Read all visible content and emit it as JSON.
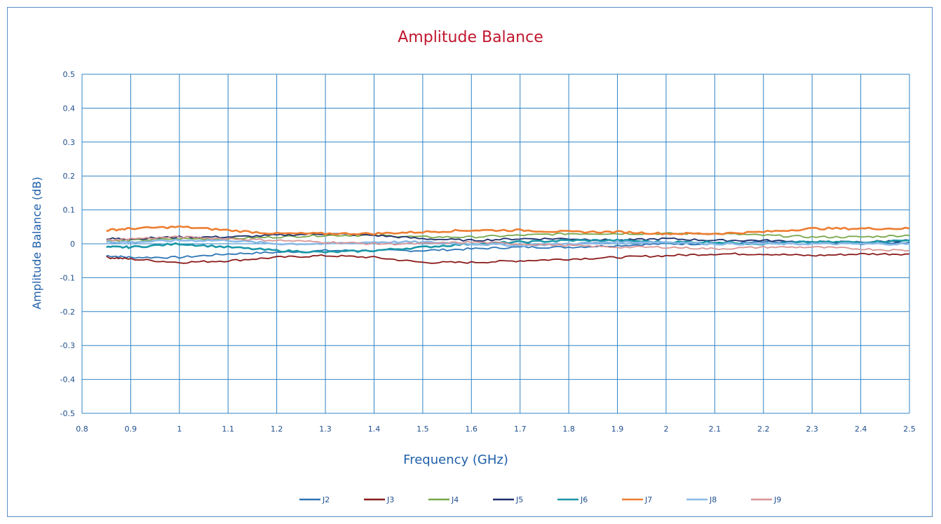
{
  "chart_data": {
    "type": "line",
    "title": "Amplitude Balance",
    "xlabel": "Frequency (GHz)",
    "ylabel": "Amplitude Balance (dB)",
    "xlim": [
      0.8,
      2.5
    ],
    "ylim": [
      -0.5,
      0.5
    ],
    "x_ticks": [
      "0.8",
      "0.9",
      "1",
      "1.1",
      "1.2",
      "1.3",
      "1.4",
      "1.5",
      "1.6",
      "1.7",
      "1.8",
      "1.9",
      "2",
      "2.1",
      "2.2",
      "2.3",
      "2.4",
      "2.5"
    ],
    "y_ticks": [
      "0.5",
      "0.4",
      "0.3",
      "0.2",
      "0.1",
      "0",
      "-0.1",
      "-0.2",
      "-0.3",
      "-0.4",
      "-0.5"
    ],
    "grid": true,
    "legend_position": "bottom",
    "x": [
      0.85,
      0.9,
      1.0,
      1.1,
      1.2,
      1.3,
      1.4,
      1.5,
      1.6,
      1.7,
      1.8,
      1.9,
      2.0,
      2.1,
      2.2,
      2.3,
      2.4,
      2.5
    ],
    "series": [
      {
        "name": "J2",
        "color": "#2e75b6",
        "values": [
          -0.035,
          -0.04,
          -0.04,
          -0.03,
          -0.025,
          -0.02,
          -0.02,
          -0.02,
          -0.015,
          -0.01,
          -0.01,
          -0.005,
          0.0,
          0.0,
          0.005,
          0.005,
          0.0,
          0.005
        ]
      },
      {
        "name": "J3",
        "color": "#8b1a1a",
        "values": [
          -0.04,
          -0.045,
          -0.055,
          -0.05,
          -0.04,
          -0.035,
          -0.04,
          -0.055,
          -0.055,
          -0.05,
          -0.045,
          -0.04,
          -0.035,
          -0.03,
          -0.03,
          -0.035,
          -0.03,
          -0.03
        ]
      },
      {
        "name": "J4",
        "color": "#77a84a",
        "values": [
          0.01,
          0.01,
          0.015,
          0.015,
          0.02,
          0.025,
          0.025,
          0.02,
          0.02,
          0.025,
          0.03,
          0.03,
          0.03,
          0.03,
          0.025,
          0.02,
          0.02,
          0.025
        ]
      },
      {
        "name": "J5",
        "color": "#1f2f6b",
        "values": [
          0.015,
          0.015,
          0.02,
          0.02,
          0.025,
          0.03,
          0.025,
          0.015,
          0.01,
          0.015,
          0.015,
          0.01,
          0.015,
          0.01,
          0.01,
          0.005,
          0.005,
          0.01
        ]
      },
      {
        "name": "J6",
        "color": "#1b98a8",
        "values": [
          -0.01,
          -0.01,
          0.0,
          -0.01,
          -0.02,
          -0.025,
          -0.02,
          -0.01,
          0.0,
          0.005,
          0.01,
          0.01,
          0.005,
          0.005,
          0.0,
          0.005,
          0.005,
          0.01
        ]
      },
      {
        "name": "J7",
        "color": "#ed7d31",
        "values": [
          0.04,
          0.045,
          0.05,
          0.04,
          0.03,
          0.03,
          0.03,
          0.035,
          0.04,
          0.04,
          0.035,
          0.035,
          0.03,
          0.03,
          0.035,
          0.045,
          0.045,
          0.045
        ]
      },
      {
        "name": "J8",
        "color": "#8ab9e6",
        "values": [
          0.005,
          0.005,
          0.01,
          0.01,
          0.0,
          0.0,
          0.005,
          0.005,
          0.0,
          -0.005,
          0.0,
          0.005,
          0.005,
          0.0,
          0.0,
          0.0,
          0.0,
          0.0
        ]
      },
      {
        "name": "J9",
        "color": "#d99594",
        "values": [
          0.01,
          0.015,
          0.02,
          0.015,
          0.01,
          0.005,
          0.0,
          0.0,
          0.005,
          0.0,
          -0.005,
          -0.01,
          -0.01,
          -0.015,
          -0.01,
          -0.01,
          -0.015,
          -0.02
        ]
      }
    ]
  }
}
